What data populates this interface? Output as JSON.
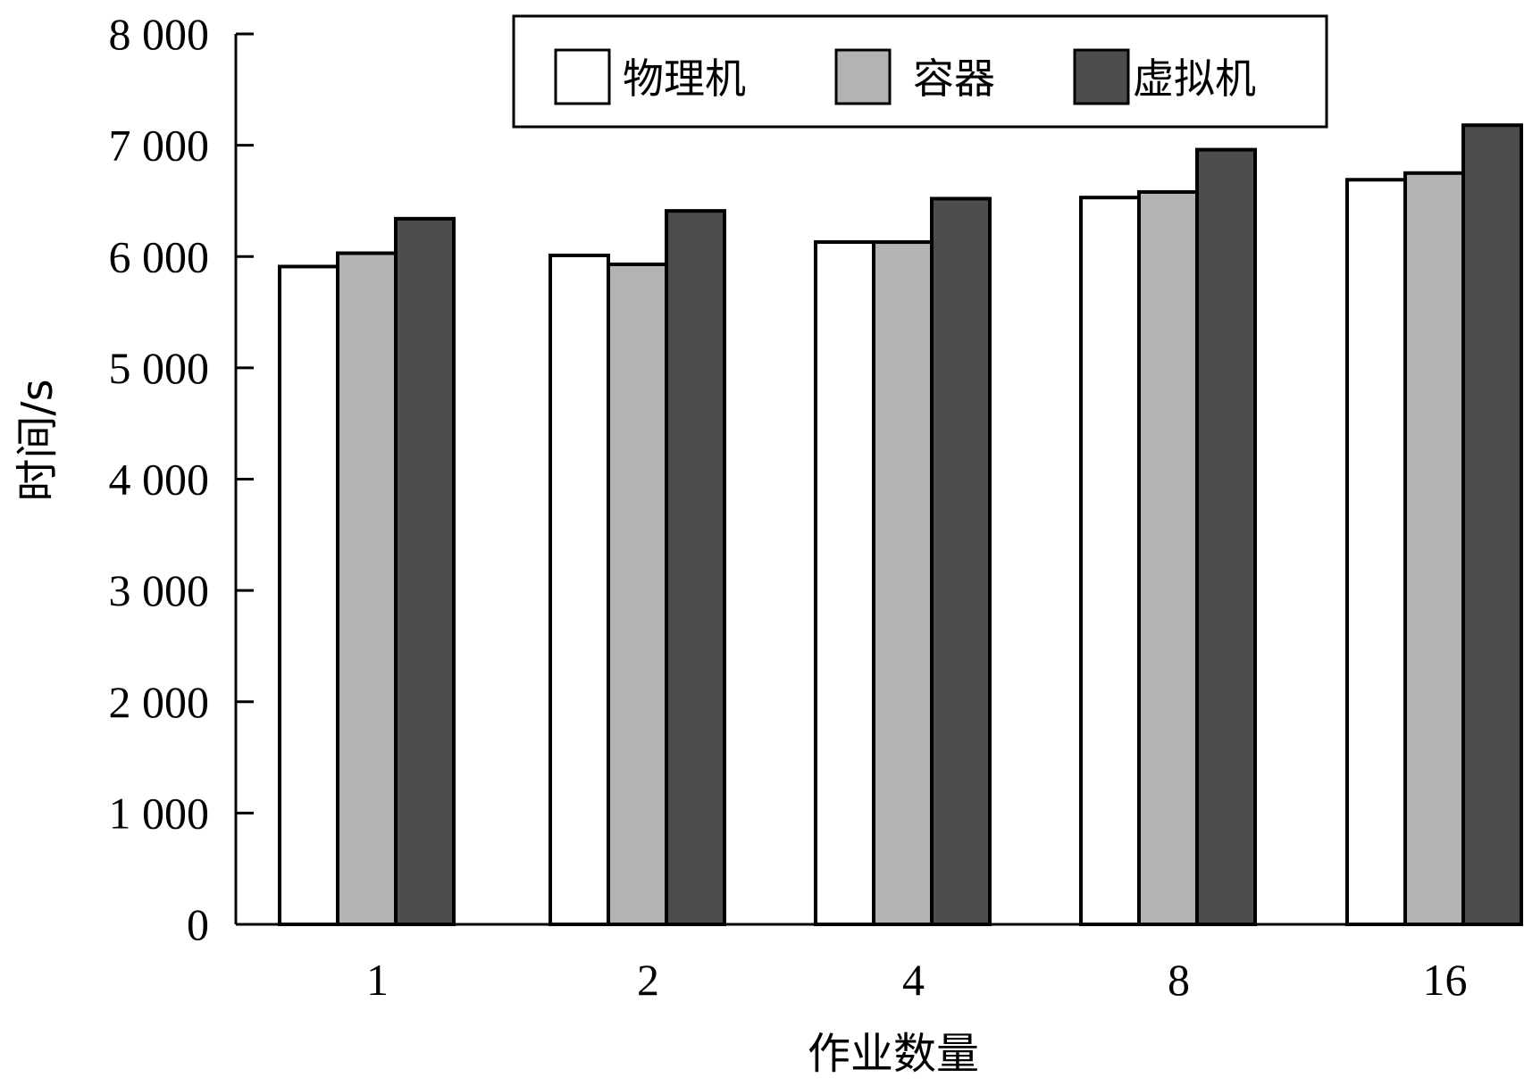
{
  "chart_data": {
    "type": "bar",
    "categories": [
      "1",
      "2",
      "4",
      "8",
      "16"
    ],
    "series": [
      {
        "name": "物理机",
        "values": [
          5910,
          6010,
          6130,
          6530,
          6690
        ],
        "color": "#ffffff"
      },
      {
        "name": "容器",
        "values": [
          6030,
          5930,
          6130,
          6580,
          6750
        ],
        "color": "#b3b3b3"
      },
      {
        "name": "虚拟机",
        "values": [
          6340,
          6410,
          6520,
          6960,
          7180
        ],
        "color": "#4d4d4d"
      }
    ],
    "xlabel": "作业数量",
    "ylabel": "时间/s",
    "ylim": [
      0,
      8000
    ],
    "yticks": [
      {
        "value": 0,
        "label": "0"
      },
      {
        "value": 1000,
        "label": "1 000"
      },
      {
        "value": 2000,
        "label": "2 000"
      },
      {
        "value": 3000,
        "label": "3 000"
      },
      {
        "value": 4000,
        "label": "4 000"
      },
      {
        "value": 5000,
        "label": "5 000"
      },
      {
        "value": 6000,
        "label": "6 000"
      },
      {
        "value": 7000,
        "label": "7 000"
      },
      {
        "value": 8000,
        "label": "8 000"
      }
    ],
    "grid": false,
    "legend_position": "top-right",
    "legend_border": true
  }
}
